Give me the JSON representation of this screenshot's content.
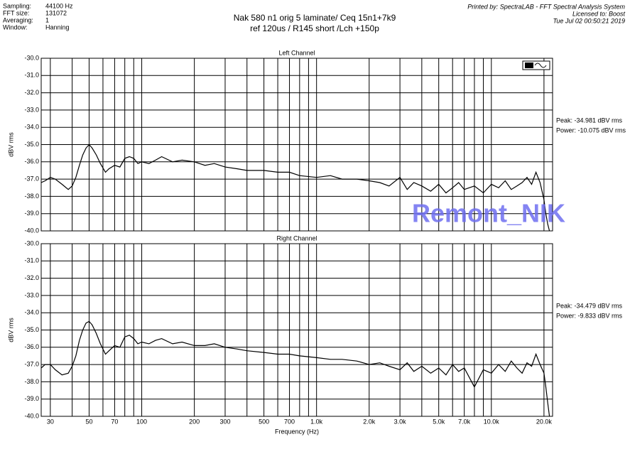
{
  "header": {
    "fields": [
      [
        "Sampling:",
        "44100 Hz"
      ],
      [
        "FFT size:",
        "131072"
      ],
      [
        "Averaging:",
        "1"
      ],
      [
        "Window:",
        "Hanning"
      ]
    ],
    "title": [
      "Nak 580 n1 orig 5 laminate/ Ceq 15n1+7k9",
      "ref 120us / R145 short /Lch +150p"
    ],
    "printed_by": "Printed by: SpectraLAB - FFT Spectral Analysis System",
    "licensed": "Licensed to: Boost",
    "date": "Tue Jul 02 00:50:21 2019"
  },
  "watermark": "Remont_NIK",
  "chart_data": [
    {
      "type": "line",
      "title": "Left Channel",
      "y_label": "dBV rms",
      "log_x": true,
      "grid": true,
      "color": "#000000",
      "annotations": [
        "Peak: -34.981 dBV rms",
        "Power: -10.075 dBV rms"
      ],
      "xlim": [
        26.6,
        22400
      ],
      "ylim": [
        -40,
        -30
      ],
      "yticks": [
        {
          "value": -30,
          "label": "-30.0"
        },
        {
          "value": -31,
          "label": "-31.0"
        },
        {
          "value": -32,
          "label": "-32.0"
        },
        {
          "value": -33,
          "label": "-33.0"
        },
        {
          "value": -34,
          "label": "-34.0"
        },
        {
          "value": -35,
          "label": "-35.0"
        },
        {
          "value": -36,
          "label": "-36.0"
        },
        {
          "value": -37,
          "label": "-37.0"
        },
        {
          "value": -38,
          "label": "-38.0"
        },
        {
          "value": -39,
          "label": "-39.0"
        },
        {
          "value": -40,
          "label": "-40.0"
        }
      ],
      "xticks": [
        {
          "value": 30,
          "label": null
        },
        {
          "value": 40,
          "label": null
        },
        {
          "value": 50,
          "label": null
        },
        {
          "value": 60,
          "label": null
        },
        {
          "value": 70,
          "label": null
        },
        {
          "value": 80,
          "label": null
        },
        {
          "value": 90,
          "label": null
        },
        {
          "value": 100,
          "label": null
        },
        {
          "value": 200,
          "label": null
        },
        {
          "value": 300,
          "label": null
        },
        {
          "value": 400,
          "label": null
        },
        {
          "value": 500,
          "label": null
        },
        {
          "value": 600,
          "label": null
        },
        {
          "value": 700,
          "label": null
        },
        {
          "value": 800,
          "label": null
        },
        {
          "value": 900,
          "label": null
        },
        {
          "value": 1000,
          "label": null
        },
        {
          "value": 2000,
          "label": null
        },
        {
          "value": 3000,
          "label": null
        },
        {
          "value": 4000,
          "label": null
        },
        {
          "value": 5000,
          "label": null
        },
        {
          "value": 6000,
          "label": null
        },
        {
          "value": 7000,
          "label": null
        },
        {
          "value": 8000,
          "label": null
        },
        {
          "value": 9000,
          "label": null
        },
        {
          "value": 10000,
          "label": null
        },
        {
          "value": 20000,
          "label": null
        }
      ],
      "x": [
        26.6,
        28,
        30,
        32,
        35,
        38,
        40,
        42,
        44,
        46,
        48,
        50,
        52,
        55,
        58,
        62,
        65,
        70,
        75,
        80,
        85,
        90,
        95,
        100,
        110,
        120,
        130,
        150,
        170,
        200,
        230,
        260,
        300,
        350,
        400,
        500,
        600,
        700,
        800,
        1000,
        1200,
        1400,
        1700,
        2000,
        2300,
        2600,
        3000,
        3300,
        3600,
        4000,
        4500,
        5000,
        5500,
        6000,
        6500,
        7000,
        8000,
        9000,
        10000,
        11000,
        12000,
        13000,
        14000,
        15000,
        16000,
        17000,
        18000,
        19000,
        20000,
        20500,
        21000,
        21500
      ],
      "values": [
        -37.2,
        -37.1,
        -36.9,
        -37.0,
        -37.3,
        -37.6,
        -37.4,
        -36.9,
        -36.2,
        -35.6,
        -35.2,
        -35.0,
        -35.2,
        -35.6,
        -36.1,
        -36.6,
        -36.4,
        -36.2,
        -36.3,
        -35.8,
        -35.7,
        -35.8,
        -36.1,
        -36.0,
        -36.1,
        -35.9,
        -35.7,
        -36.0,
        -35.9,
        -36.0,
        -36.2,
        -36.1,
        -36.3,
        -36.4,
        -36.5,
        -36.5,
        -36.6,
        -36.6,
        -36.8,
        -36.9,
        -36.8,
        -37.0,
        -37.0,
        -37.1,
        -37.2,
        -37.4,
        -36.9,
        -37.6,
        -37.2,
        -37.4,
        -37.7,
        -37.3,
        -37.8,
        -37.5,
        -37.2,
        -37.6,
        -37.4,
        -37.8,
        -37.3,
        -37.5,
        -37.1,
        -37.6,
        -37.4,
        -37.2,
        -36.9,
        -37.3,
        -36.6,
        -37.2,
        -38.2,
        -39.0,
        -39.6,
        -40.0
      ]
    },
    {
      "type": "line",
      "title": "Right Channel",
      "y_label": "dBV rms",
      "x_label": "Frequency (Hz)",
      "log_x": true,
      "grid": true,
      "color": "#000000",
      "annotations": [
        "Peak: -34.479 dBV rms",
        "Power: -9.833 dBV rms"
      ],
      "xlim": [
        26.6,
        22400
      ],
      "ylim": [
        -40,
        -30
      ],
      "yticks": [
        {
          "value": -30,
          "label": "-30.0"
        },
        {
          "value": -31,
          "label": "-31.0"
        },
        {
          "value": -32,
          "label": "-32.0"
        },
        {
          "value": -33,
          "label": "-33.0"
        },
        {
          "value": -34,
          "label": "-34.0"
        },
        {
          "value": -35,
          "label": "-35.0"
        },
        {
          "value": -36,
          "label": "-36.0"
        },
        {
          "value": -37,
          "label": "-37.0"
        },
        {
          "value": -38,
          "label": "-38.0"
        },
        {
          "value": -39,
          "label": "-39.0"
        },
        {
          "value": -40,
          "label": "-40.0"
        }
      ],
      "xticks": [
        30,
        {
          "value": 40,
          "label": null
        },
        50,
        {
          "value": 60,
          "label": null
        },
        70,
        {
          "value": 80,
          "label": null
        },
        {
          "value": 90,
          "label": null
        },
        100,
        200,
        300,
        {
          "value": 400,
          "label": null
        },
        500,
        {
          "value": 600,
          "label": null
        },
        700,
        {
          "value": 800,
          "label": null
        },
        {
          "value": 900,
          "label": null
        },
        {
          "value": 1000,
          "label": "1.0k"
        },
        {
          "value": 2000,
          "label": "2.0k"
        },
        {
          "value": 3000,
          "label": "3.0k"
        },
        {
          "value": 4000,
          "label": null
        },
        {
          "value": 5000,
          "label": "5.0k"
        },
        {
          "value": 6000,
          "label": null
        },
        {
          "value": 7000,
          "label": "7.0k"
        },
        {
          "value": 8000,
          "label": null
        },
        {
          "value": 9000,
          "label": null
        },
        {
          "value": 10000,
          "label": "10.0k"
        },
        {
          "value": 20000,
          "label": "20.0k"
        }
      ],
      "x": [
        26.6,
        28,
        30,
        32,
        35,
        38,
        40,
        42,
        44,
        46,
        48,
        50,
        52,
        55,
        58,
        62,
        65,
        70,
        75,
        80,
        85,
        90,
        95,
        100,
        110,
        120,
        130,
        150,
        170,
        200,
        230,
        260,
        300,
        350,
        400,
        500,
        600,
        700,
        800,
        1000,
        1200,
        1400,
        1700,
        2000,
        2300,
        2600,
        3000,
        3300,
        3600,
        4000,
        4500,
        5000,
        5500,
        6000,
        6500,
        7000,
        8000,
        9000,
        10000,
        11000,
        12000,
        13000,
        14000,
        15000,
        16000,
        17000,
        18000,
        19000,
        20000,
        20500,
        21000,
        21500
      ],
      "values": [
        -37.2,
        -37.0,
        -37.0,
        -37.3,
        -37.6,
        -37.5,
        -37.1,
        -36.5,
        -35.6,
        -35.0,
        -34.6,
        -34.5,
        -34.7,
        -35.2,
        -35.8,
        -36.4,
        -36.2,
        -35.9,
        -36.0,
        -35.4,
        -35.3,
        -35.5,
        -35.8,
        -35.7,
        -35.8,
        -35.6,
        -35.5,
        -35.8,
        -35.7,
        -35.9,
        -35.9,
        -35.8,
        -36.0,
        -36.1,
        -36.2,
        -36.3,
        -36.4,
        -36.4,
        -36.5,
        -36.6,
        -36.7,
        -36.7,
        -36.8,
        -37.0,
        -36.9,
        -37.1,
        -37.3,
        -36.9,
        -37.4,
        -37.1,
        -37.5,
        -37.2,
        -37.6,
        -37.0,
        -37.4,
        -37.2,
        -38.3,
        -37.3,
        -37.5,
        -37.0,
        -37.4,
        -36.8,
        -37.2,
        -37.5,
        -36.9,
        -37.1,
        -36.4,
        -37.0,
        -37.5,
        -38.3,
        -39.2,
        -40.0
      ]
    }
  ]
}
